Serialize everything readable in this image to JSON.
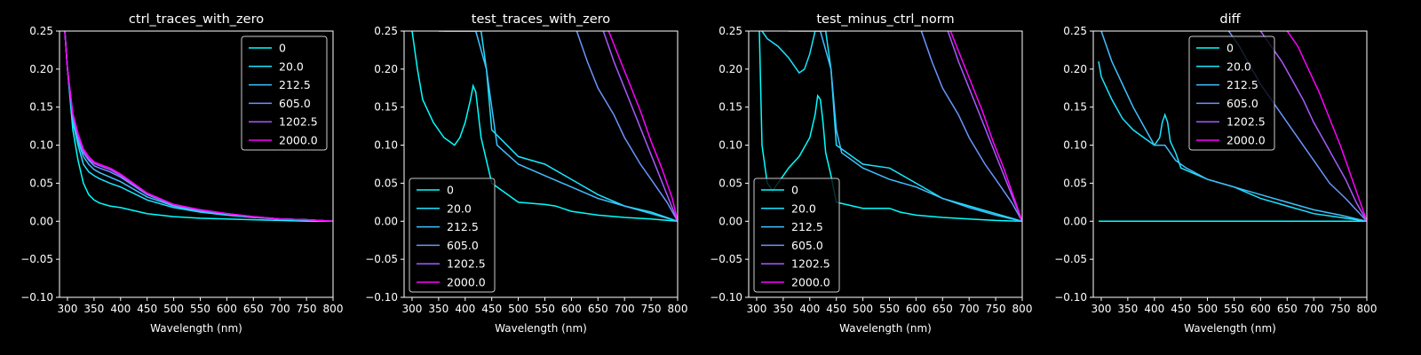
{
  "figure": {
    "background": "#000000",
    "foreground": "#ffffff"
  },
  "legend_labels": [
    "0",
    "20.0",
    "212.5",
    "605.0",
    "1202.5",
    "2000.0"
  ],
  "series_colors": [
    "#00ffff",
    "#1ae5ff",
    "#3fc0ff",
    "#6a95ff",
    "#a85aff",
    "#ff00ff"
  ],
  "chart_data": [
    {
      "type": "line",
      "title": "ctrl_traces_with_zero",
      "xlabel": "Wavelength (nm)",
      "ylabel": "",
      "xlim": [
        285,
        800
      ],
      "ylim": [
        -0.1,
        0.25
      ],
      "xticks": [
        "300",
        "350",
        "400",
        "450",
        "500",
        "550",
        "600",
        "650",
        "700",
        "750",
        "800"
      ],
      "yticks": [
        "−0.10",
        "−0.05",
        "0.00",
        "0.05",
        "0.10",
        "0.15",
        "0.20",
        "0.25"
      ],
      "legend": "upper right",
      "series": [
        {
          "name": "0",
          "x": [
            295,
            300,
            310,
            320,
            330,
            340,
            350,
            360,
            380,
            400,
            450,
            500,
            550,
            600,
            650,
            700,
            750,
            800
          ],
          "y": [
            0.25,
            0.2,
            0.12,
            0.08,
            0.05,
            0.035,
            0.028,
            0.024,
            0.02,
            0.018,
            0.01,
            0.006,
            0.004,
            0.003,
            0.002,
            0.001,
            0.0,
            0.0
          ]
        },
        {
          "name": "20.0",
          "x": [
            295,
            300,
            310,
            320,
            330,
            340,
            350,
            360,
            380,
            400,
            450,
            500,
            550,
            600,
            650,
            700,
            750,
            800
          ],
          "y": [
            0.25,
            0.2,
            0.13,
            0.1,
            0.075,
            0.065,
            0.06,
            0.056,
            0.05,
            0.045,
            0.028,
            0.018,
            0.012,
            0.008,
            0.005,
            0.003,
            0.002,
            0.0
          ]
        },
        {
          "name": "212.5",
          "x": [
            295,
            300,
            310,
            320,
            330,
            340,
            350,
            360,
            380,
            400,
            450,
            500,
            550,
            600,
            650,
            700,
            750,
            800
          ],
          "y": [
            0.25,
            0.2,
            0.135,
            0.105,
            0.085,
            0.075,
            0.068,
            0.064,
            0.058,
            0.052,
            0.032,
            0.02,
            0.013,
            0.009,
            0.005,
            0.003,
            0.002,
            0.0
          ]
        },
        {
          "name": "605.0",
          "x": [
            295,
            300,
            310,
            320,
            330,
            340,
            350,
            360,
            380,
            400,
            450,
            500,
            550,
            600,
            650,
            700,
            750,
            800
          ],
          "y": [
            0.25,
            0.2,
            0.138,
            0.11,
            0.09,
            0.08,
            0.073,
            0.07,
            0.065,
            0.058,
            0.035,
            0.021,
            0.014,
            0.01,
            0.006,
            0.003,
            0.002,
            0.0
          ]
        },
        {
          "name": "1202.5",
          "x": [
            295,
            300,
            310,
            320,
            330,
            340,
            350,
            360,
            380,
            400,
            450,
            500,
            550,
            600,
            650,
            700,
            750,
            800
          ],
          "y": [
            0.25,
            0.2,
            0.14,
            0.112,
            0.092,
            0.082,
            0.076,
            0.073,
            0.068,
            0.06,
            0.036,
            0.022,
            0.015,
            0.01,
            0.006,
            0.003,
            0.002,
            0.0
          ]
        },
        {
          "name": "2000.0",
          "x": [
            295,
            300,
            310,
            320,
            330,
            340,
            350,
            360,
            380,
            400,
            450,
            500,
            550,
            600,
            650,
            700,
            750,
            800
          ],
          "y": [
            0.25,
            0.2,
            0.142,
            0.115,
            0.095,
            0.085,
            0.078,
            0.075,
            0.07,
            0.062,
            0.037,
            0.022,
            0.015,
            0.01,
            0.006,
            0.003,
            0.002,
            0.0
          ]
        }
      ]
    },
    {
      "type": "line",
      "title": "test_traces_with_zero",
      "xlabel": "Wavelength (nm)",
      "ylabel": "",
      "xlim": [
        285,
        800
      ],
      "ylim": [
        -0.1,
        0.25
      ],
      "xticks": [
        "300",
        "350",
        "400",
        "450",
        "500",
        "550",
        "600",
        "650",
        "700",
        "750",
        "800"
      ],
      "yticks": [
        "−0.10",
        "−0.05",
        "0.00",
        "0.05",
        "0.10",
        "0.15",
        "0.20",
        "0.25"
      ],
      "legend": "lower left",
      "series": [
        {
          "name": "0",
          "x": [
            300,
            310,
            320,
            340,
            360,
            380,
            390,
            400,
            410,
            415,
            420,
            425,
            430,
            440,
            450,
            500,
            550,
            570,
            600,
            650,
            700,
            750,
            800
          ],
          "y": [
            0.25,
            0.2,
            0.16,
            0.13,
            0.11,
            0.1,
            0.11,
            0.13,
            0.16,
            0.178,
            0.17,
            0.14,
            0.11,
            0.08,
            0.05,
            0.025,
            0.022,
            0.02,
            0.013,
            0.008,
            0.005,
            0.003,
            0.0
          ]
        },
        {
          "name": "20.0",
          "x": [
            350,
            360,
            370,
            380,
            390,
            400,
            405,
            410,
            420,
            430,
            440,
            450,
            500,
            550,
            600,
            650,
            700,
            750,
            800
          ],
          "y": [
            0.25,
            0.25,
            0.25,
            0.25,
            0.25,
            0.25,
            0.25,
            0.25,
            0.25,
            0.25,
            0.2,
            0.12,
            0.085,
            0.075,
            0.055,
            0.035,
            0.02,
            0.012,
            0.0
          ]
        },
        {
          "name": "212.5",
          "x": [
            360,
            380,
            400,
            420,
            440,
            460,
            500,
            550,
            600,
            650,
            700,
            750,
            800
          ],
          "y": [
            0.25,
            0.25,
            0.25,
            0.25,
            0.2,
            0.1,
            0.075,
            0.06,
            0.045,
            0.03,
            0.02,
            0.01,
            0.0
          ]
        },
        {
          "name": "605.0",
          "x": [
            610,
            630,
            650,
            680,
            700,
            730,
            750,
            780,
            800
          ],
          "y": [
            0.25,
            0.21,
            0.175,
            0.14,
            0.11,
            0.075,
            0.055,
            0.025,
            0.0
          ]
        },
        {
          "name": "1202.5",
          "x": [
            660,
            680,
            700,
            720,
            740,
            760,
            780,
            800
          ],
          "y": [
            0.25,
            0.21,
            0.175,
            0.14,
            0.105,
            0.07,
            0.035,
            0.0
          ]
        },
        {
          "name": "2000.0",
          "x": [
            670,
            690,
            710,
            730,
            750,
            770,
            790,
            800
          ],
          "y": [
            0.25,
            0.215,
            0.18,
            0.145,
            0.105,
            0.07,
            0.03,
            0.0
          ]
        }
      ]
    },
    {
      "type": "line",
      "title": "test_minus_ctrl_norm",
      "xlabel": "Wavelength (nm)",
      "ylabel": "",
      "xlim": [
        285,
        800
      ],
      "ylim": [
        -0.1,
        0.25
      ],
      "xticks": [
        "300",
        "350",
        "400",
        "450",
        "500",
        "550",
        "600",
        "650",
        "700",
        "750",
        "800"
      ],
      "yticks": [
        "−0.10",
        "−0.05",
        "0.00",
        "0.05",
        "0.10",
        "0.15",
        "0.20",
        "0.25"
      ],
      "legend": "lower left",
      "series": [
        {
          "name": "0",
          "x": [
            305,
            310,
            320,
            330,
            340,
            350,
            360,
            380,
            400,
            410,
            415,
            420,
            425,
            430,
            440,
            450,
            500,
            550,
            570,
            600,
            650,
            700,
            750,
            800
          ],
          "y": [
            0.25,
            0.1,
            0.05,
            0.04,
            0.05,
            0.06,
            0.07,
            0.085,
            0.11,
            0.14,
            0.165,
            0.16,
            0.13,
            0.09,
            0.06,
            0.025,
            0.017,
            0.017,
            0.012,
            0.008,
            0.005,
            0.003,
            0.001,
            0.0
          ]
        },
        {
          "name": "20.0",
          "x": [
            310,
            320,
            340,
            360,
            380,
            390,
            400,
            410,
            420,
            430,
            440,
            450,
            500,
            550,
            600,
            650,
            700,
            750,
            800
          ],
          "y": [
            0.25,
            0.24,
            0.23,
            0.215,
            0.195,
            0.2,
            0.22,
            0.25,
            0.25,
            0.25,
            0.2,
            0.1,
            0.075,
            0.07,
            0.05,
            0.03,
            0.02,
            0.01,
            0.0
          ]
        },
        {
          "name": "212.5",
          "x": [
            360,
            380,
            400,
            420,
            440,
            450,
            460,
            500,
            550,
            600,
            650,
            700,
            750,
            800
          ],
          "y": [
            0.25,
            0.25,
            0.25,
            0.25,
            0.2,
            0.12,
            0.09,
            0.07,
            0.055,
            0.045,
            0.03,
            0.018,
            0.008,
            0.0
          ]
        },
        {
          "name": "605.0",
          "x": [
            610,
            630,
            650,
            680,
            700,
            730,
            750,
            780,
            800
          ],
          "y": [
            0.25,
            0.21,
            0.175,
            0.14,
            0.11,
            0.075,
            0.055,
            0.025,
            0.0
          ]
        },
        {
          "name": "1202.5",
          "x": [
            660,
            680,
            700,
            720,
            740,
            760,
            780,
            800
          ],
          "y": [
            0.25,
            0.21,
            0.175,
            0.14,
            0.105,
            0.07,
            0.035,
            0.0
          ]
        },
        {
          "name": "2000.0",
          "x": [
            665,
            685,
            705,
            725,
            745,
            765,
            785,
            800
          ],
          "y": [
            0.25,
            0.215,
            0.18,
            0.145,
            0.105,
            0.07,
            0.03,
            0.0
          ]
        }
      ]
    },
    {
      "type": "line",
      "title": "diff",
      "xlabel": "Wavelength (nm)",
      "ylabel": "",
      "xlim": [
        285,
        800
      ],
      "ylim": [
        -0.1,
        0.25
      ],
      "xticks": [
        "300",
        "350",
        "400",
        "450",
        "500",
        "550",
        "600",
        "650",
        "700",
        "750",
        "800"
      ],
      "yticks": [
        "−0.10",
        "−0.05",
        "0.00",
        "0.05",
        "0.10",
        "0.15",
        "0.20",
        "0.25"
      ],
      "legend": "upper center",
      "series": [
        {
          "name": "0",
          "x": [
            295,
            800
          ],
          "y": [
            0.0,
            0.0
          ]
        },
        {
          "name": "20.0",
          "x": [
            295,
            300,
            320,
            340,
            360,
            380,
            400,
            410,
            415,
            420,
            425,
            430,
            440,
            450,
            500,
            550,
            600,
            650,
            700,
            750,
            800
          ],
          "y": [
            0.21,
            0.19,
            0.16,
            0.135,
            0.12,
            0.11,
            0.1,
            0.11,
            0.13,
            0.14,
            0.13,
            0.105,
            0.09,
            0.07,
            0.055,
            0.045,
            0.03,
            0.02,
            0.01,
            0.005,
            0.0
          ]
        },
        {
          "name": "212.5",
          "x": [
            300,
            320,
            340,
            360,
            380,
            400,
            420,
            440,
            460,
            500,
            550,
            600,
            650,
            700,
            750,
            800
          ],
          "y": [
            0.25,
            0.21,
            0.18,
            0.15,
            0.125,
            0.1,
            0.1,
            0.08,
            0.07,
            0.055,
            0.045,
            0.035,
            0.025,
            0.015,
            0.008,
            0.0
          ]
        },
        {
          "name": "605.0",
          "x": [
            540,
            560,
            580,
            600,
            620,
            650,
            680,
            700,
            730,
            760,
            800
          ],
          "y": [
            0.25,
            0.23,
            0.205,
            0.18,
            0.16,
            0.13,
            0.1,
            0.08,
            0.05,
            0.03,
            0.0
          ]
        },
        {
          "name": "1202.5",
          "x": [
            600,
            620,
            640,
            660,
            680,
            700,
            720,
            740,
            760,
            780,
            800
          ],
          "y": [
            0.25,
            0.23,
            0.21,
            0.185,
            0.16,
            0.13,
            0.105,
            0.08,
            0.055,
            0.025,
            0.0
          ]
        },
        {
          "name": "2000.0",
          "x": [
            650,
            670,
            690,
            710,
            730,
            750,
            770,
            790,
            800
          ],
          "y": [
            0.25,
            0.23,
            0.2,
            0.17,
            0.135,
            0.1,
            0.06,
            0.02,
            0.0
          ]
        }
      ]
    }
  ]
}
